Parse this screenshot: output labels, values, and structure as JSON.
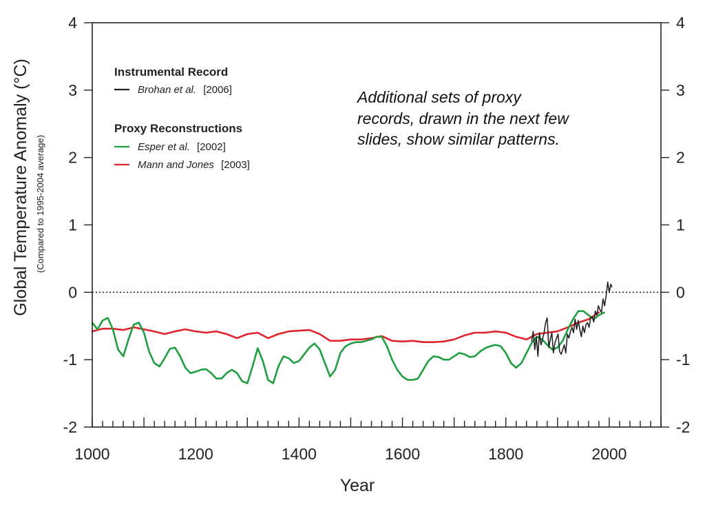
{
  "chart_data": {
    "type": "line",
    "xlabel": "Year",
    "ylabel": "Global Temperature Anomaly (°C)",
    "ylabel_sub": "(Compared to 1995-2004 average)",
    "xlim": [
      1000,
      2100
    ],
    "ylim": [
      -2,
      4
    ],
    "x_ticks": [
      1000,
      1200,
      1400,
      1600,
      1800,
      2000
    ],
    "x_tick_labels": [
      "1000",
      "1200",
      "1400",
      "1600",
      "1800",
      "2000"
    ],
    "y_ticks": [
      -2,
      -1,
      0,
      1,
      2,
      3,
      4
    ],
    "y_tick_labels": [
      "-2",
      "-1",
      "0",
      "1",
      "2",
      "3",
      "4"
    ],
    "zero_line": "dotted",
    "grid": false,
    "legend": {
      "placement": "top-left",
      "groups": [
        {
          "heading": "Instrumental Record",
          "entries": [
            {
              "name": "Brohan et al.",
              "ref": "[2006]",
              "color": "#222222"
            }
          ]
        },
        {
          "heading": "Proxy Reconstructions",
          "entries": [
            {
              "name": "Esper et al.",
              "ref": "[2002]",
              "color": "#1e9e3e"
            },
            {
              "name": "Mann and Jones",
              "ref": "[2003]",
              "color": "#e0232a"
            }
          ]
        }
      ]
    },
    "annotation": "Additional sets of proxy records, drawn in the next few slides, show similar patterns.",
    "series": [
      {
        "name": "Brohan et al. [2006]",
        "color": "#222222",
        "x": [
          1850,
          1853,
          1856,
          1859,
          1862,
          1865,
          1868,
          1871,
          1874,
          1877,
          1880,
          1883,
          1886,
          1889,
          1892,
          1895,
          1898,
          1901,
          1904,
          1907,
          1910,
          1913,
          1916,
          1919,
          1922,
          1925,
          1928,
          1931,
          1934,
          1937,
          1940,
          1943,
          1946,
          1949,
          1952,
          1955,
          1958,
          1961,
          1964,
          1967,
          1970,
          1973,
          1976,
          1979,
          1982,
          1985,
          1988,
          1991,
          1994,
          1997,
          2000,
          2003,
          2005
        ],
        "y": [
          -0.72,
          -0.58,
          -0.85,
          -0.66,
          -0.95,
          -0.6,
          -0.78,
          -0.7,
          -0.6,
          -0.45,
          -0.38,
          -0.82,
          -0.7,
          -0.6,
          -0.9,
          -0.75,
          -0.68,
          -0.62,
          -0.88,
          -0.92,
          -0.85,
          -0.78,
          -0.9,
          -0.62,
          -0.68,
          -0.58,
          -0.52,
          -0.6,
          -0.4,
          -0.55,
          -0.42,
          -0.55,
          -0.66,
          -0.5,
          -0.6,
          -0.48,
          -0.45,
          -0.52,
          -0.38,
          -0.36,
          -0.44,
          -0.28,
          -0.34,
          -0.2,
          -0.26,
          -0.3,
          -0.1,
          -0.2,
          -0.05,
          0.15,
          0.0,
          0.12,
          0.08
        ]
      },
      {
        "name": "Esper et al. [2002]",
        "color": "#1e9e3e",
        "x": [
          1000,
          1010,
          1020,
          1030,
          1040,
          1050,
          1060,
          1070,
          1080,
          1090,
          1100,
          1110,
          1120,
          1130,
          1140,
          1150,
          1160,
          1170,
          1180,
          1190,
          1200,
          1210,
          1220,
          1230,
          1240,
          1250,
          1260,
          1270,
          1280,
          1290,
          1300,
          1310,
          1320,
          1330,
          1340,
          1350,
          1360,
          1370,
          1380,
          1390,
          1400,
          1410,
          1420,
          1430,
          1440,
          1450,
          1460,
          1470,
          1480,
          1490,
          1500,
          1510,
          1520,
          1530,
          1540,
          1550,
          1560,
          1570,
          1580,
          1590,
          1600,
          1610,
          1620,
          1630,
          1640,
          1650,
          1660,
          1670,
          1680,
          1690,
          1700,
          1710,
          1720,
          1730,
          1740,
          1750,
          1760,
          1770,
          1780,
          1790,
          1800,
          1810,
          1820,
          1830,
          1840,
          1850,
          1860,
          1870,
          1880,
          1890,
          1900,
          1910,
          1920,
          1930,
          1940,
          1950,
          1960,
          1970,
          1980,
          1990
        ],
        "y": [
          -0.45,
          -0.55,
          -0.42,
          -0.38,
          -0.55,
          -0.85,
          -0.95,
          -0.7,
          -0.48,
          -0.45,
          -0.6,
          -0.88,
          -1.05,
          -1.1,
          -0.98,
          -0.84,
          -0.82,
          -0.95,
          -1.12,
          -1.2,
          -1.18,
          -1.15,
          -1.14,
          -1.2,
          -1.28,
          -1.28,
          -1.2,
          -1.15,
          -1.2,
          -1.32,
          -1.35,
          -1.1,
          -0.83,
          -1.02,
          -1.3,
          -1.35,
          -1.1,
          -0.95,
          -0.98,
          -1.05,
          -1.02,
          -0.92,
          -0.82,
          -0.76,
          -0.85,
          -1.05,
          -1.25,
          -1.15,
          -0.9,
          -0.8,
          -0.76,
          -0.74,
          -0.74,
          -0.72,
          -0.7,
          -0.66,
          -0.66,
          -0.8,
          -1.0,
          -1.15,
          -1.25,
          -1.3,
          -1.3,
          -1.28,
          -1.15,
          -1.02,
          -0.95,
          -0.96,
          -1.0,
          -1.0,
          -0.95,
          -0.9,
          -0.92,
          -0.96,
          -0.95,
          -0.88,
          -0.83,
          -0.8,
          -0.78,
          -0.8,
          -0.9,
          -1.05,
          -1.12,
          -1.05,
          -0.9,
          -0.75,
          -0.66,
          -0.7,
          -0.78,
          -0.85,
          -0.82,
          -0.72,
          -0.55,
          -0.4,
          -0.28,
          -0.28,
          -0.34,
          -0.4,
          -0.34,
          -0.3
        ]
      },
      {
        "name": "Mann and Jones [2003]",
        "color": "#e0232a",
        "x": [
          1000,
          1020,
          1040,
          1060,
          1080,
          1100,
          1120,
          1140,
          1160,
          1180,
          1200,
          1220,
          1240,
          1260,
          1280,
          1300,
          1320,
          1340,
          1360,
          1380,
          1400,
          1420,
          1440,
          1460,
          1480,
          1500,
          1520,
          1540,
          1560,
          1580,
          1600,
          1620,
          1640,
          1660,
          1680,
          1700,
          1720,
          1740,
          1760,
          1780,
          1800,
          1820,
          1840,
          1860,
          1880,
          1900,
          1920,
          1940,
          1960,
          1980
        ],
        "y": [
          -0.58,
          -0.54,
          -0.54,
          -0.56,
          -0.52,
          -0.55,
          -0.58,
          -0.62,
          -0.58,
          -0.55,
          -0.58,
          -0.6,
          -0.58,
          -0.62,
          -0.68,
          -0.62,
          -0.6,
          -0.68,
          -0.62,
          -0.58,
          -0.57,
          -0.56,
          -0.62,
          -0.72,
          -0.72,
          -0.7,
          -0.7,
          -0.68,
          -0.65,
          -0.72,
          -0.73,
          -0.72,
          -0.74,
          -0.74,
          -0.73,
          -0.7,
          -0.64,
          -0.6,
          -0.6,
          -0.58,
          -0.6,
          -0.66,
          -0.7,
          -0.62,
          -0.6,
          -0.58,
          -0.52,
          -0.45,
          -0.4,
          -0.3
        ]
      }
    ]
  }
}
